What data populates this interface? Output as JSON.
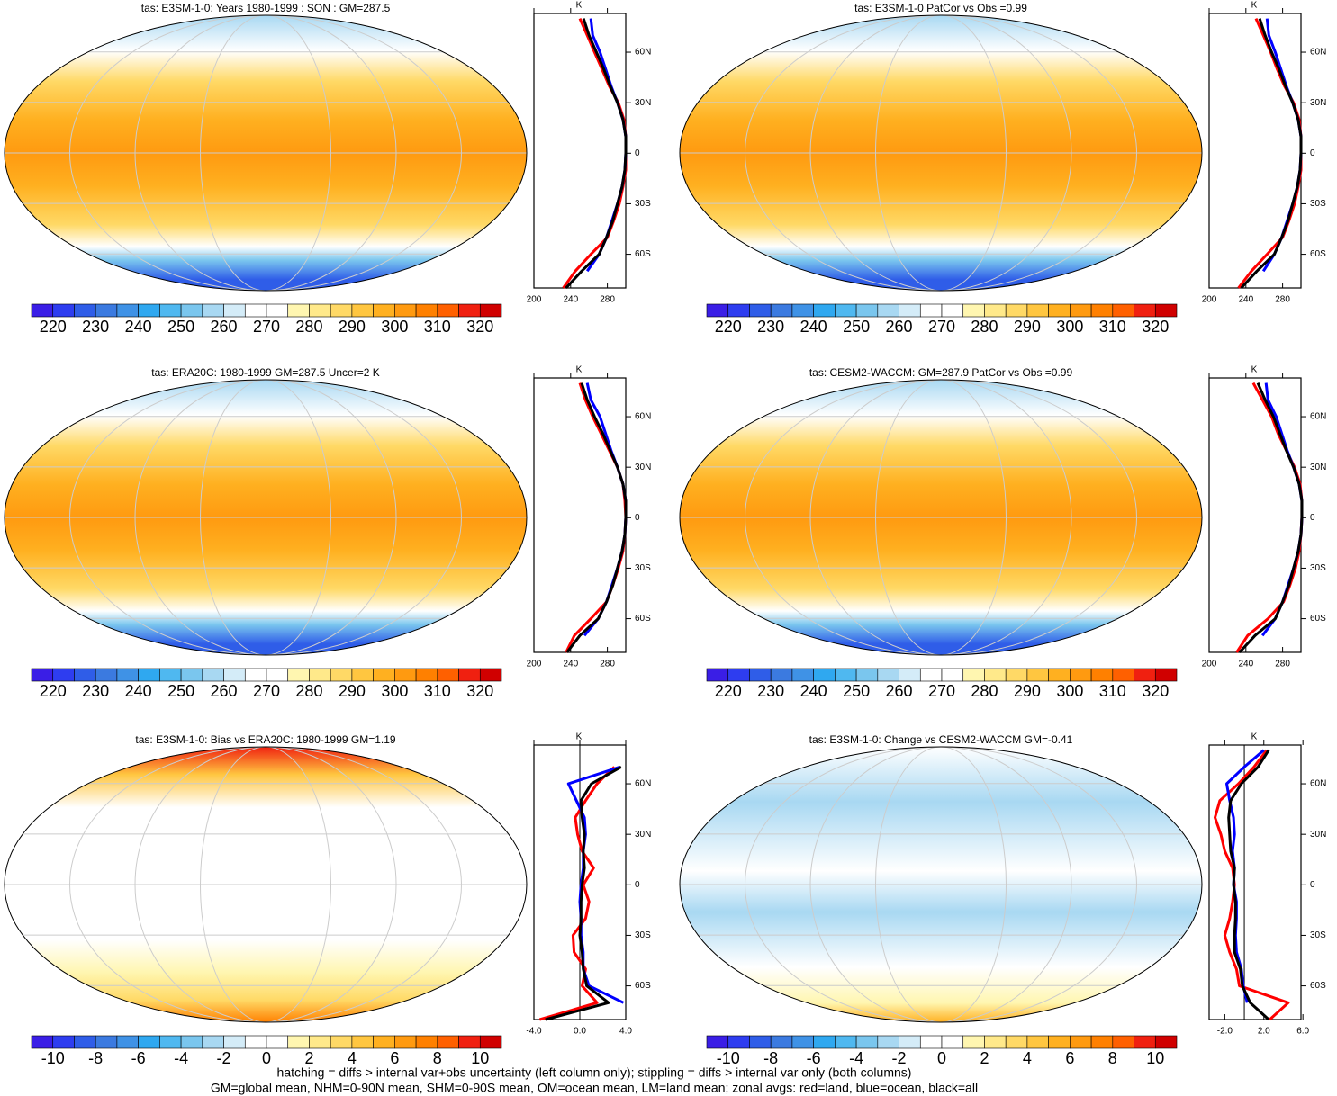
{
  "palette": [
    "#3a1ee6",
    "#2e3df0",
    "#2f5de8",
    "#3b7ae0",
    "#3f92e6",
    "#2fa8f0",
    "#4fb8f0",
    "#7ac6ee",
    "#a8d8f2",
    "#d4ecf8",
    "#ffffff",
    "#ffffff",
    "#fff6b0",
    "#ffe98a",
    "#ffd966",
    "#ffc640",
    "#ffb020",
    "#ff9a10",
    "#ff8000",
    "#ff6000",
    "#f02010",
    "#d00000"
  ],
  "footer": [
    "hatching = diffs > internal var+obs uncertainty (left column only); stippling = diffs > internal var only (both columns)",
    "GM=global mean, NHM=0-90N mean, SHM=0-90S mean, OM=ocean mean, LM=land mean; zonal avgs: red=land, blue=ocean, black=all"
  ],
  "chart_data": [
    {
      "type": "line",
      "field": "abs",
      "title": "tas: E3SM-1-0: Years 1980-1999 : SON : GM=287.5",
      "xlabel": "K",
      "colorbar": {
        "lim": [
          215,
          325
        ],
        "ticks": [
          220,
          230,
          240,
          250,
          260,
          270,
          280,
          290,
          300,
          310,
          320
        ]
      },
      "xlim": [
        200,
        300
      ],
      "xticks": [
        200,
        240,
        280
      ],
      "ylim": [
        -80,
        83
      ],
      "yticks": [
        {
          "value": 60,
          "label": "60N"
        },
        {
          "value": 30,
          "label": "30N"
        },
        0,
        {
          "value": -30,
          "label": "30S"
        },
        {
          "value": -60,
          "label": "60S"
        }
      ],
      "y": [
        -80,
        -70,
        -60,
        -50,
        -40,
        -30,
        -20,
        -10,
        0,
        10,
        20,
        30,
        40,
        50,
        60,
        70,
        80
      ],
      "series": [
        {
          "name": "land",
          "color": "#ff0000",
          "values": [
            232,
            245,
            262,
            280,
            287,
            293,
            297,
            300,
            300,
            300,
            298,
            292,
            282,
            274,
            266,
            258,
            250
          ]
        },
        {
          "name": "ocean",
          "color": "#0000ff",
          "values": [
            null,
            258,
            271,
            279,
            285,
            291,
            296,
            299,
            300,
            300,
            297,
            291,
            284,
            278,
            272,
            264,
            262
          ]
        },
        {
          "name": "all",
          "color": "#000000",
          "values": [
            235,
            252,
            271,
            279,
            286,
            291,
            296,
            299,
            300,
            300,
            297,
            291,
            283,
            276,
            268,
            260,
            254
          ]
        }
      ]
    },
    {
      "type": "line",
      "field": "abs",
      "title": "tas: E3SM-1-0 PatCor vs Obs =0.99",
      "xlabel": "K",
      "colorbar": {
        "lim": [
          215,
          325
        ],
        "ticks": [
          220,
          230,
          240,
          250,
          260,
          270,
          280,
          290,
          300,
          310,
          320
        ]
      },
      "xlim": [
        200,
        300
      ],
      "xticks": [
        200,
        240,
        280
      ],
      "ylim": [
        -80,
        83
      ],
      "yticks": [
        {
          "value": 60,
          "label": "60N"
        },
        {
          "value": 30,
          "label": "30N"
        },
        0,
        {
          "value": -30,
          "label": "30S"
        },
        {
          "value": -60,
          "label": "60S"
        }
      ],
      "y": [
        -80,
        -70,
        -60,
        -50,
        -40,
        -30,
        -20,
        -10,
        0,
        10,
        20,
        30,
        40,
        50,
        60,
        70,
        80
      ],
      "series": [
        {
          "name": "land",
          "color": "#ff0000",
          "values": [
            232,
            246,
            263,
            280,
            287,
            293,
            297,
            300,
            300,
            300,
            298,
            292,
            282,
            274,
            267,
            259,
            251
          ]
        },
        {
          "name": "ocean",
          "color": "#0000ff",
          "values": [
            null,
            259,
            271,
            279,
            285,
            291,
            296,
            299,
            300,
            300,
            297,
            291,
            284,
            278,
            272,
            265,
            263
          ]
        },
        {
          "name": "all",
          "color": "#000000",
          "values": [
            235,
            252,
            271,
            279,
            286,
            291,
            296,
            299,
            300,
            300,
            297,
            291,
            283,
            276,
            268,
            261,
            255
          ]
        }
      ]
    },
    {
      "type": "line",
      "field": "abs",
      "title": "tas: ERA20C: 1980-1999 GM=287.5 Uncer=2 K",
      "xlabel": "K",
      "colorbar": {
        "lim": [
          215,
          325
        ],
        "ticks": [
          220,
          230,
          240,
          250,
          260,
          270,
          280,
          290,
          300,
          310,
          320
        ]
      },
      "xlim": [
        200,
        300
      ],
      "xticks": [
        200,
        240,
        280
      ],
      "ylim": [
        -80,
        83
      ],
      "yticks": [
        {
          "value": 60,
          "label": "60N"
        },
        {
          "value": 30,
          "label": "30N"
        },
        0,
        {
          "value": -30,
          "label": "30S"
        },
        {
          "value": -60,
          "label": "60S"
        }
      ],
      "y": [
        -80,
        -70,
        -60,
        -50,
        -40,
        -30,
        -20,
        -10,
        0,
        10,
        20,
        30,
        40,
        50,
        60,
        70,
        80
      ],
      "series": [
        {
          "name": "land",
          "color": "#ff0000",
          "values": [
            235,
            244,
            262,
            279,
            286,
            292,
            297,
            299,
            300,
            299,
            297,
            291,
            282,
            273,
            264,
            256,
            250
          ]
        },
        {
          "name": "ocean",
          "color": "#0000ff",
          "values": [
            null,
            255,
            270,
            279,
            285,
            291,
            296,
            299,
            300,
            300,
            297,
            291,
            284,
            278,
            272,
            262,
            258
          ]
        },
        {
          "name": "all",
          "color": "#000000",
          "values": [
            236,
            250,
            270,
            279,
            286,
            291,
            296,
            299,
            300,
            300,
            297,
            291,
            283,
            275,
            266,
            258,
            252
          ]
        }
      ]
    },
    {
      "type": "line",
      "field": "abs",
      "title": "tas: CESM2-WACCM: GM=287.9 PatCor vs Obs =0.99",
      "xlabel": "K",
      "colorbar": {
        "lim": [
          215,
          325
        ],
        "ticks": [
          220,
          230,
          240,
          250,
          260,
          270,
          280,
          290,
          300,
          310,
          320
        ]
      },
      "xlim": [
        200,
        300
      ],
      "xticks": [
        200,
        240,
        280
      ],
      "ylim": [
        -80,
        83
      ],
      "yticks": [
        {
          "value": 60,
          "label": "60N"
        },
        {
          "value": 30,
          "label": "30N"
        },
        0,
        {
          "value": -30,
          "label": "30S"
        },
        {
          "value": -60,
          "label": "60S"
        }
      ],
      "y": [
        -80,
        -70,
        -60,
        -50,
        -40,
        -30,
        -20,
        -10,
        0,
        10,
        20,
        30,
        40,
        50,
        60,
        70,
        80
      ],
      "series": [
        {
          "name": "land",
          "color": "#ff0000",
          "values": [
            230,
            242,
            264,
            281,
            288,
            294,
            298,
            300,
            301,
            301,
            299,
            293,
            284,
            275,
            268,
            258,
            248
          ]
        },
        {
          "name": "ocean",
          "color": "#0000ff",
          "values": [
            null,
            258,
            272,
            280,
            286,
            292,
            297,
            300,
            301,
            301,
            298,
            292,
            285,
            279,
            273,
            264,
            262
          ]
        },
        {
          "name": "all",
          "color": "#000000",
          "values": [
            233,
            250,
            272,
            280,
            287,
            292,
            297,
            300,
            301,
            301,
            298,
            292,
            284,
            277,
            270,
            261,
            253
          ]
        }
      ]
    },
    {
      "type": "line",
      "field": "bias",
      "title": "tas: E3SM-1-0: Bias vs ERA20C: 1980-1999  GM=1.19",
      "xlabel": "K",
      "colorbar": {
        "lim": [
          -11,
          11
        ],
        "ticks": [
          -10,
          -8,
          -6,
          -4,
          -2,
          0,
          2,
          4,
          6,
          8,
          10
        ]
      },
      "xlim": [
        -4,
        4
      ],
      "xticks": [
        {
          "value": -4,
          "label": "-4.0"
        },
        {
          "value": 0,
          "label": "0.0"
        },
        {
          "value": 4,
          "label": "4.0"
        }
      ],
      "ylim": [
        -80,
        83
      ],
      "yticks": [
        {
          "value": 60,
          "label": "60N"
        },
        {
          "value": 30,
          "label": "30N"
        },
        0,
        {
          "value": -30,
          "label": "30S"
        },
        {
          "value": -60,
          "label": "60S"
        }
      ],
      "y": [
        -80,
        -70,
        -60,
        -50,
        -40,
        -30,
        -20,
        -10,
        0,
        10,
        20,
        30,
        40,
        50,
        60,
        70,
        80
      ],
      "series": [
        {
          "name": "land",
          "color": "#ff0000",
          "values": [
            -3.5,
            1.5,
            0.2,
            0.5,
            -0.5,
            -0.6,
            0.5,
            0.8,
            0.3,
            1.2,
            0.2,
            -0.2,
            -0.4,
            0.5,
            1.5,
            3,
            null
          ]
        },
        {
          "name": "ocean",
          "color": "#0000ff",
          "values": [
            null,
            3.8,
            0.8,
            0.3,
            0.3,
            0.1,
            0.1,
            0,
            0.1,
            0.3,
            0.3,
            0.5,
            0.4,
            -0.3,
            -1,
            3.5,
            null
          ]
        },
        {
          "name": "all",
          "color": "#000000",
          "values": [
            -3,
            2.5,
            0.6,
            0.3,
            0.2,
            0,
            0.1,
            0.1,
            0.2,
            0.4,
            0.3,
            0.4,
            0.2,
            0.1,
            1,
            3.6,
            null
          ]
        }
      ]
    },
    {
      "type": "line",
      "field": "change",
      "title": "tas: E3SM-1-0: Change vs CESM2-WACCM GM=-0.41",
      "xlabel": "K",
      "colorbar": {
        "lim": [
          -11,
          11
        ],
        "ticks": [
          -10,
          -8,
          -6,
          -4,
          -2,
          0,
          2,
          4,
          6,
          8,
          10
        ]
      },
      "xlim": [
        -3.6,
        5.8
      ],
      "xticks": [
        {
          "value": -2,
          "label": "-2.0"
        },
        {
          "value": 2,
          "label": "2.0"
        },
        {
          "value": 6,
          "label": "6.0"
        }
      ],
      "ylim": [
        -80,
        83
      ],
      "yticks": [
        {
          "value": 60,
          "label": "60N"
        },
        {
          "value": 30,
          "label": "30N"
        },
        0,
        {
          "value": -30,
          "label": "30S"
        },
        {
          "value": -60,
          "label": "60S"
        }
      ],
      "y": [
        -80,
        -70,
        -60,
        -50,
        -40,
        -30,
        -20,
        -10,
        0,
        10,
        20,
        30,
        40,
        50,
        60,
        70,
        80
      ],
      "series": [
        {
          "name": "land",
          "color": "#ff0000",
          "values": [
            2.6,
            4.5,
            -0.5,
            -0.8,
            -1.5,
            -2,
            -1.5,
            -1.2,
            -1,
            -1.2,
            -2,
            -2.4,
            -3,
            -2.5,
            -0.6,
            1,
            2.3
          ]
        },
        {
          "name": "ocean",
          "color": "#0000ff",
          "values": [
            null,
            0.3,
            -0.1,
            -0.3,
            -0.8,
            -0.9,
            -0.8,
            -0.8,
            -1.1,
            -1,
            -1.2,
            -1,
            -1.1,
            -1.5,
            -1.8,
            0,
            2
          ]
        },
        {
          "name": "all",
          "color": "#000000",
          "values": [
            2.5,
            0.6,
            -0.2,
            -0.4,
            -1,
            -1,
            -0.9,
            -0.9,
            -1.1,
            -1,
            -1.4,
            -1.5,
            -1.6,
            -1.4,
            -0.3,
            1.4,
            2.5
          ]
        }
      ]
    }
  ]
}
